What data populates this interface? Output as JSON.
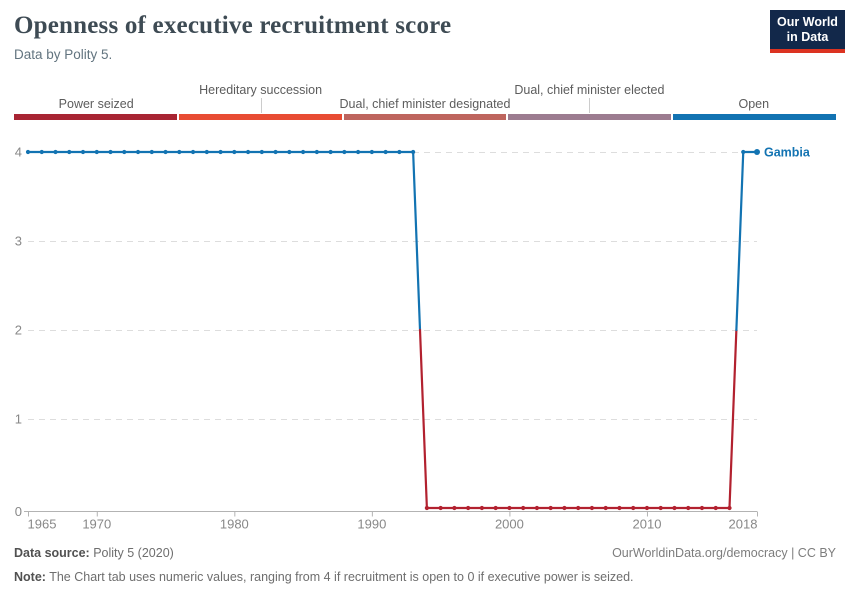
{
  "header": {
    "title": "Openness of executive recruitment score",
    "subtitle": "Data by Polity 5.",
    "logo_line1": "Our World",
    "logo_line2": "in Data"
  },
  "legend": {
    "segments": [
      {
        "label": "Power seized",
        "color": "#a82533",
        "row": "bottom"
      },
      {
        "label": "Hereditary succession",
        "color": "#e84c33",
        "row": "top"
      },
      {
        "label": "Dual, chief minister designated",
        "color": "#be655e",
        "row": "bottom"
      },
      {
        "label": "Dual, chief minister elected",
        "color": "#9c7c90",
        "row": "top"
      },
      {
        "label": "Open",
        "color": "#1273b2",
        "row": "bottom"
      }
    ]
  },
  "chart_data": {
    "type": "line",
    "title": "Openness of executive recruitment score",
    "entity_label": "Gambia",
    "xlim": [
      1965,
      2018
    ],
    "ylim": [
      0,
      4
    ],
    "x_ticks": [
      1965,
      1970,
      1980,
      1990,
      2000,
      2010,
      2018
    ],
    "y_ticks": [
      0,
      1,
      2,
      3,
      4
    ],
    "grid": true,
    "legend_position": "top",
    "value_colors": {
      "0": "#b2212f",
      "4": "#1273b2"
    },
    "value_categories": {
      "0": "Power seized",
      "4": "Open"
    },
    "series": [
      {
        "name": "Gambia",
        "points": [
          [
            1965,
            4
          ],
          [
            1966,
            4
          ],
          [
            1967,
            4
          ],
          [
            1968,
            4
          ],
          [
            1969,
            4
          ],
          [
            1970,
            4
          ],
          [
            1971,
            4
          ],
          [
            1972,
            4
          ],
          [
            1973,
            4
          ],
          [
            1974,
            4
          ],
          [
            1975,
            4
          ],
          [
            1976,
            4
          ],
          [
            1977,
            4
          ],
          [
            1978,
            4
          ],
          [
            1979,
            4
          ],
          [
            1980,
            4
          ],
          [
            1981,
            4
          ],
          [
            1982,
            4
          ],
          [
            1983,
            4
          ],
          [
            1984,
            4
          ],
          [
            1985,
            4
          ],
          [
            1986,
            4
          ],
          [
            1987,
            4
          ],
          [
            1988,
            4
          ],
          [
            1989,
            4
          ],
          [
            1990,
            4
          ],
          [
            1991,
            4
          ],
          [
            1992,
            4
          ],
          [
            1993,
            4
          ],
          [
            1994,
            0
          ],
          [
            1995,
            0
          ],
          [
            1996,
            0
          ],
          [
            1997,
            0
          ],
          [
            1998,
            0
          ],
          [
            1999,
            0
          ],
          [
            2000,
            0
          ],
          [
            2001,
            0
          ],
          [
            2002,
            0
          ],
          [
            2003,
            0
          ],
          [
            2004,
            0
          ],
          [
            2005,
            0
          ],
          [
            2006,
            0
          ],
          [
            2007,
            0
          ],
          [
            2008,
            0
          ],
          [
            2009,
            0
          ],
          [
            2010,
            0
          ],
          [
            2011,
            0
          ],
          [
            2012,
            0
          ],
          [
            2013,
            0
          ],
          [
            2014,
            0
          ],
          [
            2015,
            0
          ],
          [
            2016,
            0
          ],
          [
            2017,
            4
          ],
          [
            2018,
            4
          ]
        ]
      }
    ]
  },
  "footer": {
    "source_label": "Data source:",
    "source_value": " Polity 5 (2020)",
    "rights": "OurWorldinData.org/democracy | CC BY",
    "note_label": "Note:",
    "note_value": " The Chart tab uses numeric values, ranging from 4 if recruitment is open to 0 if executive power is seized."
  }
}
